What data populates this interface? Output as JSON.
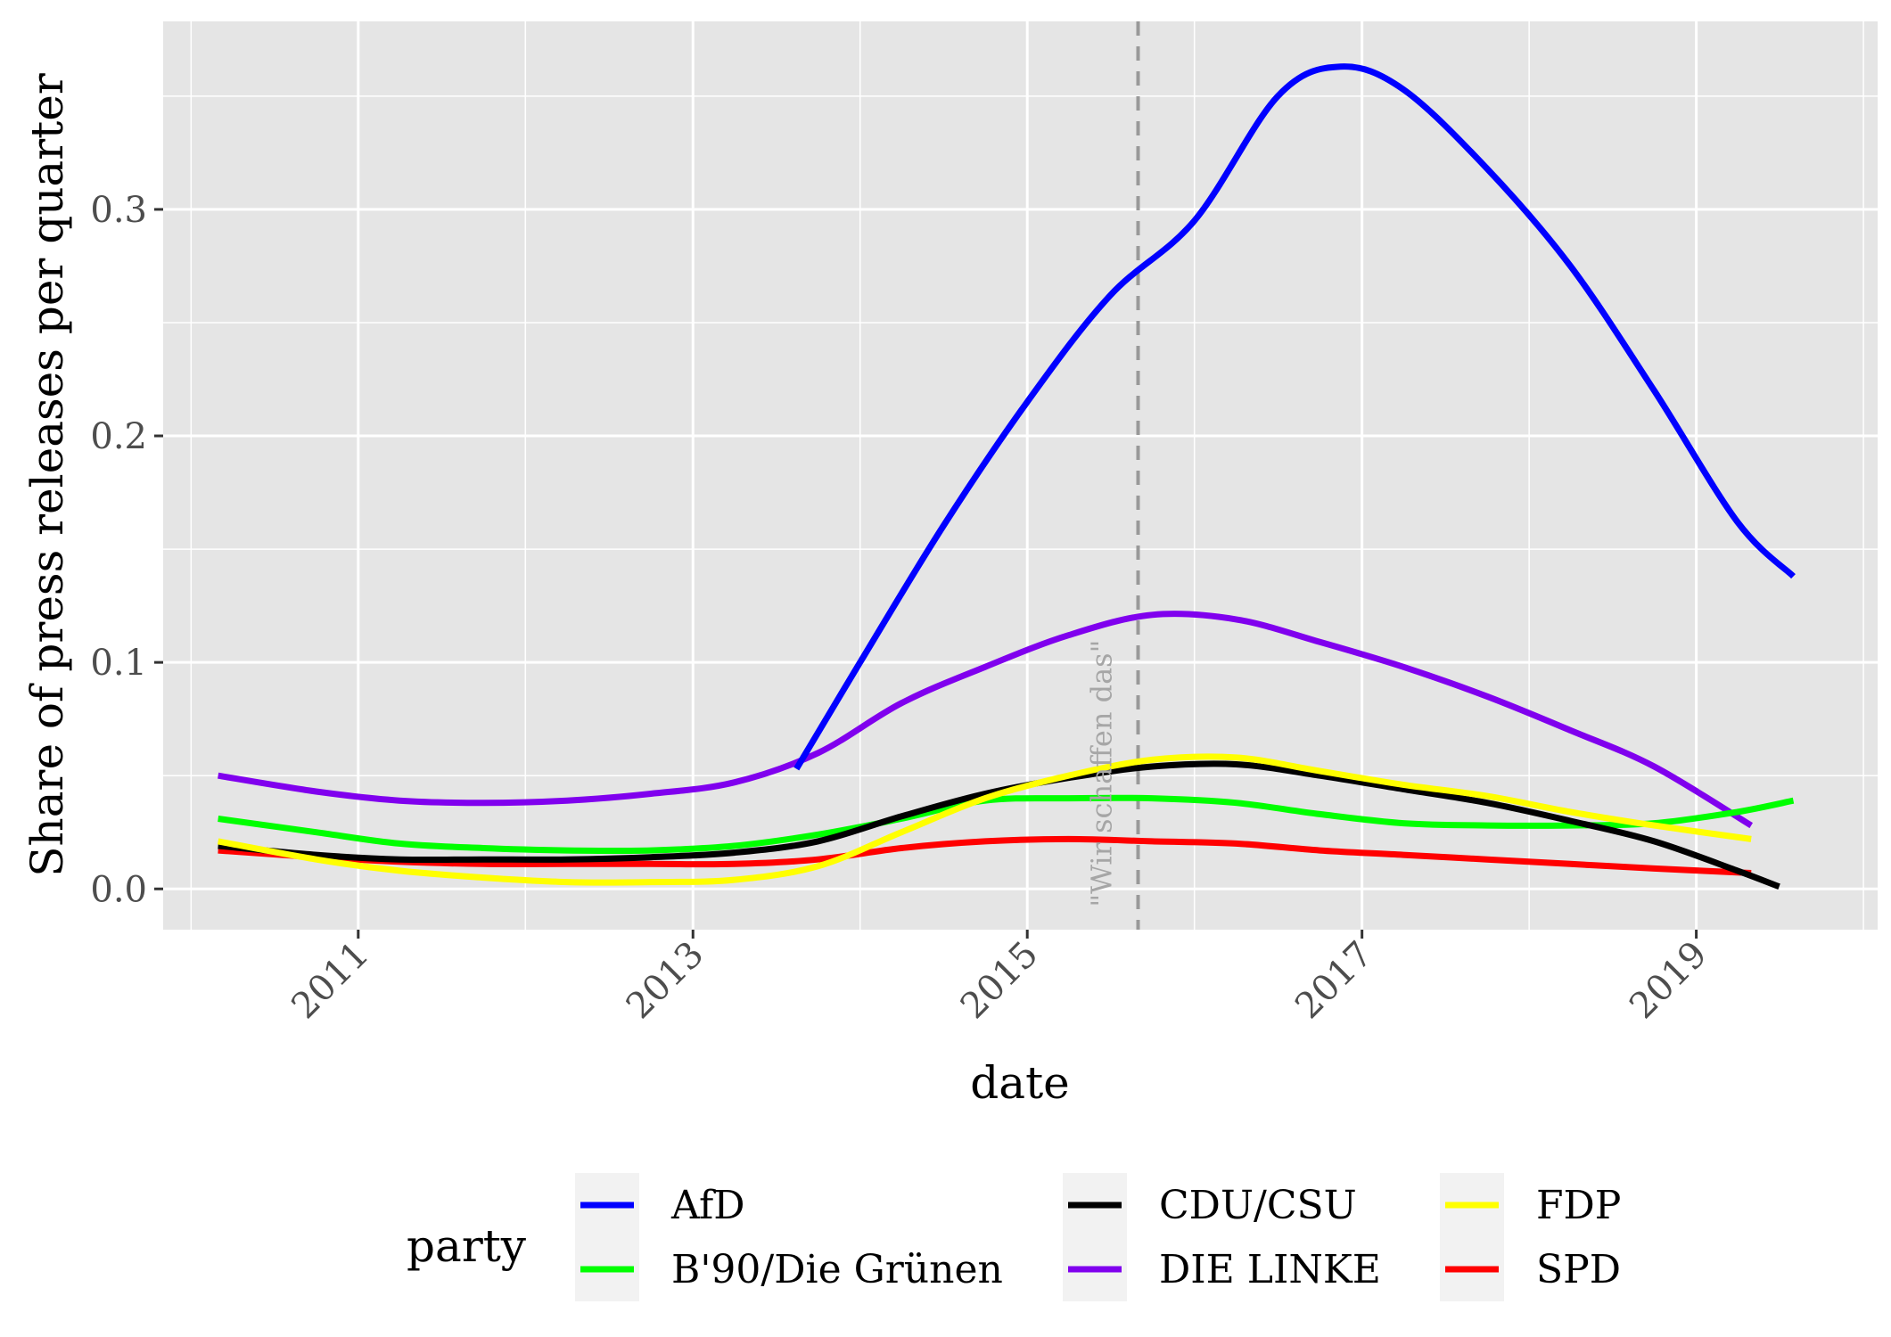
{
  "chart_data": {
    "type": "line",
    "title": "",
    "xlabel": "date",
    "ylabel": "Share of press releases per quarter",
    "x_ticks": [
      "2011",
      "2013",
      "2015",
      "2017",
      "2019"
    ],
    "y_ticks": [
      "0.0",
      "0.1",
      "0.2",
      "0.3"
    ],
    "xlim": [
      "2009-11-01",
      "2020-02-01"
    ],
    "ylim": [
      -0.018,
      0.383
    ],
    "grid": true,
    "legend": {
      "title": "party",
      "position": "bottom"
    },
    "annotation": {
      "text": "\"Wir schaffen das\"",
      "date": "2015-08-31",
      "style": "dashed-vline"
    },
    "series": [
      {
        "name": "AfD",
        "color": "#0000ff",
        "x": [
          "2013-08-15",
          "2014-01-01",
          "2014-07-01",
          "2015-01-01",
          "2015-07-01",
          "2016-01-01",
          "2016-07-01",
          "2016-11-15",
          "2017-04-01",
          "2017-10-01",
          "2018-04-01",
          "2018-10-01",
          "2019-04-01",
          "2019-08-01"
        ],
        "y": [
          0.053,
          0.1,
          0.16,
          0.215,
          0.262,
          0.295,
          0.35,
          0.363,
          0.353,
          0.318,
          0.275,
          0.22,
          0.162,
          0.138
        ]
      },
      {
        "name": "B'90/Die Grünen",
        "color": "#00ff00",
        "x": [
          "2010-03-01",
          "2010-10-01",
          "2011-04-01",
          "2011-10-01",
          "2012-04-01",
          "2012-10-01",
          "2013-04-01",
          "2013-10-01",
          "2014-04-01",
          "2014-10-01",
          "2015-04-01",
          "2015-10-01",
          "2016-04-01",
          "2016-10-01",
          "2017-04-01",
          "2017-10-01",
          "2018-04-01",
          "2018-10-01",
          "2019-04-01",
          "2019-08-01"
        ],
        "y": [
          0.031,
          0.025,
          0.02,
          0.018,
          0.017,
          0.017,
          0.019,
          0.024,
          0.031,
          0.039,
          0.04,
          0.04,
          0.038,
          0.033,
          0.029,
          0.028,
          0.028,
          0.029,
          0.034,
          0.039
        ]
      },
      {
        "name": "CDU/CSU",
        "color": "#000000",
        "x": [
          "2010-03-01",
          "2010-10-01",
          "2011-04-01",
          "2011-10-01",
          "2012-04-01",
          "2012-10-01",
          "2013-04-01",
          "2013-10-01",
          "2014-04-01",
          "2014-10-01",
          "2015-04-01",
          "2015-10-01",
          "2016-04-01",
          "2016-10-01",
          "2017-04-01",
          "2017-10-01",
          "2018-04-01",
          "2018-10-01",
          "2019-04-01",
          "2019-07-01"
        ],
        "y": [
          0.019,
          0.015,
          0.013,
          0.013,
          0.013,
          0.014,
          0.016,
          0.021,
          0.032,
          0.042,
          0.049,
          0.054,
          0.055,
          0.05,
          0.044,
          0.038,
          0.03,
          0.021,
          0.008,
          0.001
        ]
      },
      {
        "name": "DIE LINKE",
        "color": "#8000ee",
        "x": [
          "2010-03-01",
          "2010-10-01",
          "2011-04-01",
          "2011-10-01",
          "2012-04-01",
          "2012-10-01",
          "2013-04-01",
          "2013-10-01",
          "2014-04-01",
          "2014-10-01",
          "2015-04-01",
          "2015-10-01",
          "2016-04-01",
          "2016-10-01",
          "2017-04-01",
          "2017-10-01",
          "2018-04-01",
          "2018-10-01",
          "2019-05-01"
        ],
        "y": [
          0.05,
          0.043,
          0.039,
          0.038,
          0.039,
          0.042,
          0.047,
          0.06,
          0.082,
          0.098,
          0.112,
          0.121,
          0.119,
          0.109,
          0.098,
          0.085,
          0.07,
          0.054,
          0.028
        ]
      },
      {
        "name": "FDP",
        "color": "#ffff00",
        "x": [
          "2010-03-01",
          "2010-10-01",
          "2011-04-01",
          "2011-10-01",
          "2012-04-01",
          "2012-10-01",
          "2013-04-01",
          "2013-10-01",
          "2014-04-01",
          "2014-10-01",
          "2015-04-01",
          "2015-10-01",
          "2016-04-01",
          "2016-10-01",
          "2017-04-01",
          "2017-10-01",
          "2018-04-01",
          "2018-10-01",
          "2019-05-01"
        ],
        "y": [
          0.021,
          0.013,
          0.008,
          0.005,
          0.003,
          0.003,
          0.004,
          0.01,
          0.025,
          0.04,
          0.05,
          0.057,
          0.058,
          0.052,
          0.046,
          0.041,
          0.034,
          0.028,
          0.022
        ]
      },
      {
        "name": "SPD",
        "color": "#ff0000",
        "x": [
          "2010-03-01",
          "2010-10-01",
          "2011-04-01",
          "2011-10-01",
          "2012-04-01",
          "2012-10-01",
          "2013-04-01",
          "2013-10-01",
          "2014-04-01",
          "2014-10-01",
          "2015-04-01",
          "2015-10-01",
          "2016-04-01",
          "2016-10-01",
          "2017-04-01",
          "2017-10-01",
          "2018-04-01",
          "2018-10-01",
          "2019-05-01"
        ],
        "y": [
          0.017,
          0.014,
          0.012,
          0.011,
          0.011,
          0.011,
          0.011,
          0.013,
          0.018,
          0.021,
          0.022,
          0.021,
          0.02,
          0.017,
          0.015,
          0.013,
          0.011,
          0.009,
          0.007
        ]
      }
    ]
  }
}
